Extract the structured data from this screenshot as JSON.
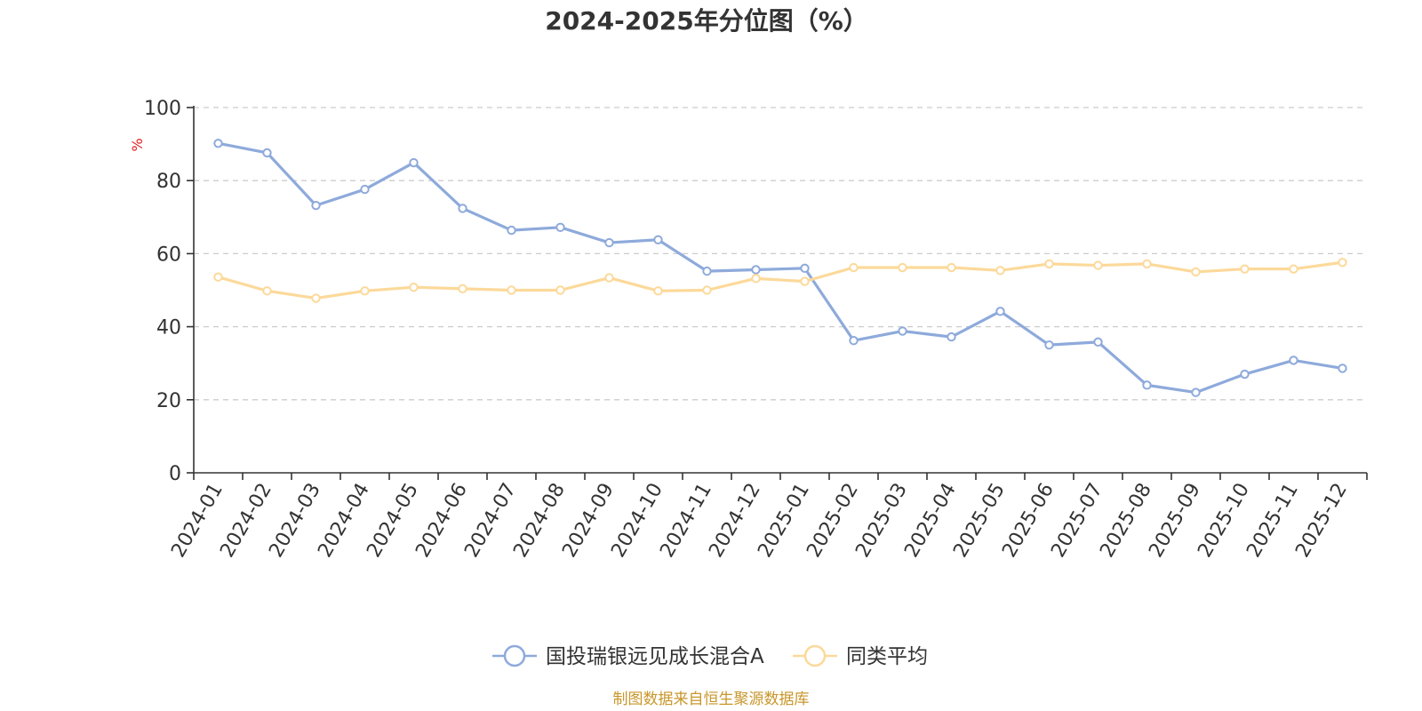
{
  "chart_data": {
    "type": "line",
    "title": "2024-2025年分位图（%）",
    "ylabel": "%",
    "xlabel": "",
    "ylim": [
      0,
      100
    ],
    "yticks": [
      0,
      20,
      40,
      60,
      80,
      100
    ],
    "grid": true,
    "legend_position": "bottom-center",
    "categories": [
      "2024-01",
      "2024-02",
      "2024-03",
      "2024-04",
      "2024-05",
      "2024-06",
      "2024-07",
      "2024-08",
      "2024-09",
      "2024-10",
      "2024-11",
      "2024-12",
      "2025-01",
      "2025-02",
      "2025-03",
      "2025-04",
      "2025-05",
      "2025-06",
      "2025-07",
      "2025-08",
      "2025-09",
      "2025-10",
      "2025-11",
      "2025-12"
    ],
    "series": [
      {
        "name": "国投瑞银远见成长混合A",
        "color": "#8eaadb",
        "values": [
          90.2,
          87.6,
          73.2,
          77.6,
          84.9,
          72.4,
          66.4,
          67.2,
          63.0,
          63.8,
          55.2,
          55.6,
          56.0,
          36.2,
          38.8,
          37.2,
          44.2,
          35.0,
          35.8,
          24.0,
          22.0,
          27.0,
          30.8,
          28.6
        ]
      },
      {
        "name": "同类平均",
        "color": "#fcd99a",
        "values": [
          53.6,
          49.8,
          47.8,
          49.8,
          50.8,
          50.4,
          50.0,
          50.0,
          53.4,
          49.8,
          50.0,
          53.2,
          52.4,
          56.2,
          56.2,
          56.2,
          55.4,
          57.2,
          56.8,
          57.2,
          55.0,
          55.8,
          55.8,
          57.6
        ]
      }
    ]
  },
  "source_note": "制图数据来自恒生聚源数据库"
}
